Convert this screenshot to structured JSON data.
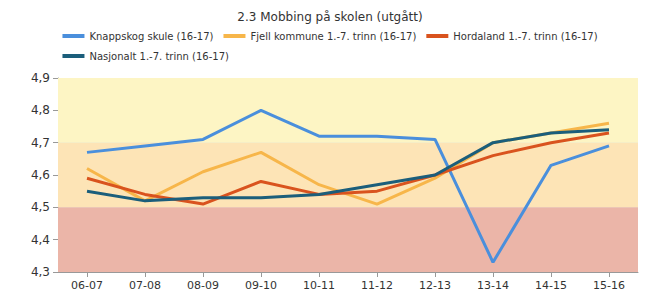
{
  "chart_data": {
    "type": "line",
    "title": "2.3 Mobbing på skolen (utgått)",
    "categories": [
      "06-07",
      "07-08",
      "08-09",
      "09-10",
      "10-11",
      "11-12",
      "12-13",
      "13-14",
      "14-15",
      "15-16"
    ],
    "series": [
      {
        "name": "Knappskog skule (16-17)",
        "color": "#4a8fdc",
        "values": [
          4.67,
          4.69,
          4.71,
          4.8,
          4.72,
          4.72,
          4.71,
          4.33,
          4.63,
          4.69
        ]
      },
      {
        "name": "Fjell kommune 1.-7. trinn (16-17)",
        "color": "#f7b64a",
        "values": [
          4.62,
          4.52,
          4.61,
          4.67,
          4.57,
          4.51,
          4.59,
          4.7,
          4.73,
          4.76
        ]
      },
      {
        "name": "Hordaland 1.-7. trinn (16-17)",
        "color": "#d9531e",
        "values": [
          4.59,
          4.54,
          4.51,
          4.58,
          4.54,
          4.55,
          4.6,
          4.66,
          4.7,
          4.73
        ]
      },
      {
        "name": "Nasjonalt 1.-7. trinn (16-17)",
        "color": "#1b5e7b",
        "values": [
          4.55,
          4.52,
          4.53,
          4.53,
          4.54,
          4.57,
          4.6,
          4.7,
          4.73,
          4.74
        ]
      }
    ],
    "bands": [
      {
        "from": 4.3,
        "to": 4.5,
        "color": "#ebb5a8"
      },
      {
        "from": 4.5,
        "to": 4.7,
        "color": "#fde4b6"
      },
      {
        "from": 4.7,
        "to": 4.9,
        "color": "#fdf5c4"
      }
    ],
    "ylim": [
      4.3,
      4.9
    ],
    "yticks": [
      {
        "value": 4.3,
        "label": "4,3"
      },
      {
        "value": 4.4,
        "label": "4,4"
      },
      {
        "value": 4.5,
        "label": "4,5"
      },
      {
        "value": 4.6,
        "label": "4,6"
      },
      {
        "value": 4.7,
        "label": "4,7"
      },
      {
        "value": 4.8,
        "label": "4,8"
      },
      {
        "value": 4.9,
        "label": "4,9"
      }
    ],
    "grid": true,
    "legend": "top"
  }
}
